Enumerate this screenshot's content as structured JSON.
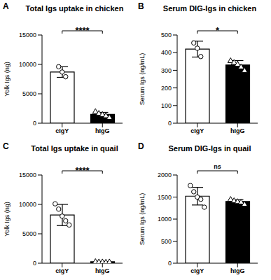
{
  "chart_data": [
    {
      "type": "bar",
      "panel": "A",
      "title": "Total Igs uptake in chicken",
      "y_label": "Yolk Igs (ng)",
      "categories": [
        "cIgY",
        "hIgG"
      ],
      "values": [
        8700,
        1500
      ],
      "error": [
        900,
        350
      ],
      "points": [
        [
          9600,
          8700,
          7900
        ],
        [
          2000,
          1700,
          1500,
          1300,
          1000
        ]
      ],
      "colors": [
        "#ffffff",
        "#000000"
      ],
      "markers": [
        "circle",
        "triangle"
      ],
      "annotation": "****",
      "ylim": [
        0,
        15000
      ],
      "yticks": [
        0,
        5000,
        10000,
        15000
      ]
    },
    {
      "type": "bar",
      "panel": "B",
      "title": "Serum DIG-Igs in chicken",
      "y_label": "Serum Igs (ng/mL)",
      "categories": [
        "cIgY",
        "hIgG"
      ],
      "values": [
        420,
        330
      ],
      "error": [
        45,
        25
      ],
      "points": [
        [
          455,
          425,
          378
        ],
        [
          355,
          345,
          335,
          320,
          300
        ]
      ],
      "colors": [
        "#ffffff",
        "#000000"
      ],
      "markers": [
        "circle",
        "triangle"
      ],
      "annotation": "*",
      "ylim": [
        0,
        500
      ],
      "yticks": [
        0,
        100,
        200,
        300,
        400,
        500
      ]
    },
    {
      "type": "bar",
      "panel": "C",
      "title": "Total Igs uptake in quail",
      "y_label": "Yolk Igs (ng)",
      "categories": [
        "cIgY",
        "hIgG"
      ],
      "values": [
        8200,
        250
      ],
      "error": [
        1800,
        50
      ],
      "points": [
        [
          10100,
          9200,
          8000,
          7200,
          6500
        ],
        [
          300,
          250,
          250,
          200,
          250
        ]
      ],
      "colors": [
        "#ffffff",
        "#000000"
      ],
      "markers": [
        "circle",
        "triangle"
      ],
      "annotation": "****",
      "ylim": [
        0,
        15000
      ],
      "yticks": [
        0,
        5000,
        10000,
        15000
      ]
    },
    {
      "type": "bar",
      "panel": "D",
      "title": "Serum DIG-Igs in quail",
      "y_label": "Serum Igs (ng/mL)",
      "categories": [
        "cIgY",
        "hIgG"
      ],
      "values": [
        1520,
        1400
      ],
      "error": [
        200,
        40
      ],
      "points": [
        [
          1760,
          1620,
          1500,
          1450,
          1270
        ],
        [
          1450,
          1420,
          1400,
          1390,
          1340
        ]
      ],
      "colors": [
        "#ffffff",
        "#000000"
      ],
      "markers": [
        "circle",
        "triangle"
      ],
      "annotation": "ns",
      "ylim": [
        0,
        2000
      ],
      "yticks": [
        0,
        500,
        1000,
        1500,
        2000
      ]
    }
  ]
}
